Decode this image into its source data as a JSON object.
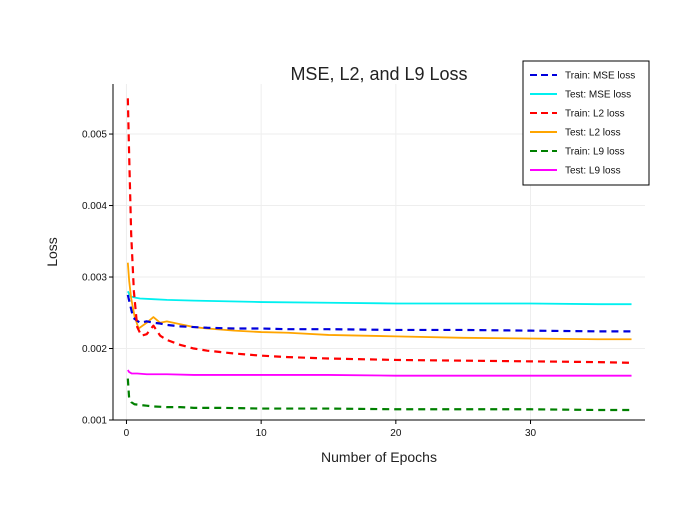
{
  "chart_data": {
    "type": "line",
    "title": "MSE, L2, and L9 Loss",
    "xlabel": "Number of Epochs",
    "ylabel": "Loss",
    "xlim": [
      -1,
      38.5
    ],
    "ylim": [
      0.001,
      0.0057
    ],
    "xticks": [
      0,
      10,
      20,
      30
    ],
    "xtick_labels": [
      "0",
      "10",
      "20",
      "30"
    ],
    "yticks": [
      0.001,
      0.002,
      0.003,
      0.004,
      0.005
    ],
    "ytick_labels": [
      "0.001",
      "0.002",
      "0.003",
      "0.004",
      "0.005"
    ],
    "grid": true,
    "legend_position": "top-right",
    "series": [
      {
        "name": "Train: MSE loss",
        "color": "#0000dd",
        "dash": "dashed",
        "x": [
          0.1,
          0.5,
          1.0,
          1.5,
          2.0,
          2.5,
          3.0,
          4.0,
          5.0,
          6.0,
          8.0,
          10.0,
          12.0,
          15.0,
          20.0,
          25.0,
          30.0,
          35.0,
          37.5
        ],
        "y": [
          0.00275,
          0.00243,
          0.00236,
          0.00238,
          0.00236,
          0.00235,
          0.00233,
          0.00231,
          0.0023,
          0.00229,
          0.00228,
          0.00228,
          0.00227,
          0.00227,
          0.00226,
          0.00226,
          0.00225,
          0.00224,
          0.00224
        ]
      },
      {
        "name": "Test: MSE loss",
        "color": "#00f0f0",
        "dash": "solid",
        "x": [
          0.1,
          0.3,
          0.7,
          1.0,
          2.0,
          3.0,
          5.0,
          10.0,
          15.0,
          20.0,
          25.0,
          30.0,
          35.0,
          37.5
        ],
        "y": [
          0.0028,
          0.00273,
          0.00271,
          0.0027,
          0.00269,
          0.00268,
          0.00267,
          0.00265,
          0.00264,
          0.00263,
          0.00263,
          0.00263,
          0.00262,
          0.00262
        ]
      },
      {
        "name": "Train: L2 loss",
        "color": "#ff0000",
        "dash": "dashed",
        "x": [
          0.1,
          0.2,
          0.35,
          0.55,
          0.8,
          1.1,
          1.5,
          2.0,
          2.5,
          3.0,
          4.0,
          5.0,
          6.0,
          8.0,
          10.0,
          12.0,
          15.0,
          20.0,
          25.0,
          30.0,
          35.0,
          37.5
        ],
        "y": [
          0.0055,
          0.0047,
          0.0036,
          0.0028,
          0.0023,
          0.00218,
          0.0022,
          0.00232,
          0.00218,
          0.00212,
          0.00205,
          0.002,
          0.00197,
          0.00193,
          0.0019,
          0.00188,
          0.00186,
          0.00184,
          0.00183,
          0.00182,
          0.00181,
          0.0018
        ]
      },
      {
        "name": "Test: L2 loss",
        "color": "#ffa500",
        "dash": "solid",
        "x": [
          0.1,
          0.2,
          0.35,
          0.6,
          0.9,
          1.2,
          1.5,
          2.0,
          2.5,
          3.0,
          4.0,
          5.0,
          6.0,
          8.0,
          10.0,
          12.0,
          15.0,
          20.0,
          25.0,
          30.0,
          35.0,
          37.5
        ],
        "y": [
          0.0032,
          0.00295,
          0.0027,
          0.00245,
          0.00228,
          0.00232,
          0.00236,
          0.00244,
          0.00236,
          0.00238,
          0.00234,
          0.0023,
          0.00228,
          0.00225,
          0.00223,
          0.00222,
          0.00219,
          0.00217,
          0.00215,
          0.00214,
          0.00213,
          0.00213
        ]
      },
      {
        "name": "Train: L9 loss",
        "color": "#008000",
        "dash": "dashed",
        "x": [
          0.1,
          0.2,
          0.35,
          0.6,
          1.0,
          1.5,
          2.0,
          3.0,
          4.0,
          5.0,
          7.0,
          10.0,
          15.0,
          20.0,
          25.0,
          30.0,
          35.0,
          37.5
        ],
        "y": [
          0.00158,
          0.0013,
          0.00125,
          0.00122,
          0.00121,
          0.0012,
          0.00119,
          0.00118,
          0.00118,
          0.00117,
          0.00117,
          0.00116,
          0.00116,
          0.00115,
          0.00115,
          0.00115,
          0.00114,
          0.00114
        ]
      },
      {
        "name": "Test: L9 loss",
        "color": "#ff00ff",
        "dash": "solid",
        "x": [
          0.1,
          0.2,
          0.4,
          0.8,
          1.5,
          3.0,
          5.0,
          10.0,
          15.0,
          20.0,
          25.0,
          30.0,
          35.0,
          37.5
        ],
        "y": [
          0.0017,
          0.00167,
          0.00165,
          0.00165,
          0.00164,
          0.00164,
          0.00163,
          0.00163,
          0.00163,
          0.00162,
          0.00162,
          0.00162,
          0.00162,
          0.00162
        ]
      }
    ]
  }
}
